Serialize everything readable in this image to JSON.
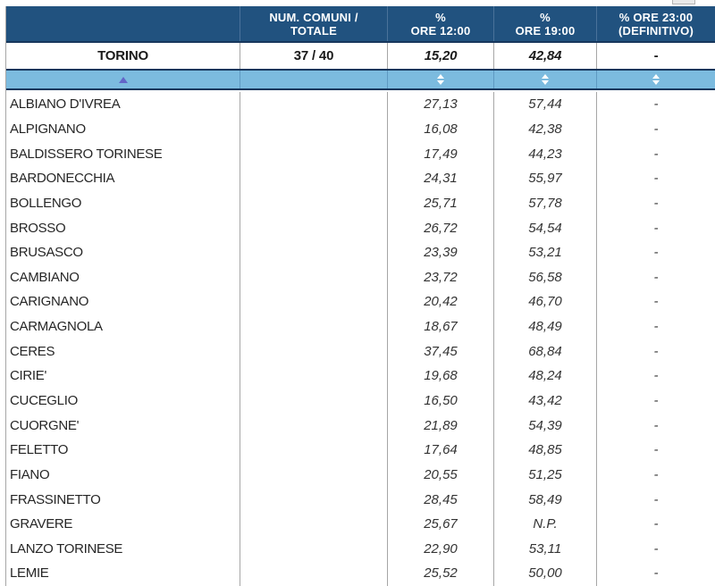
{
  "colors": {
    "header_bg": "#21527F",
    "thick_border": "#17375D",
    "sort_row_bg": "#7CBBDF",
    "sort_arrow_inactive": "#FFFFFF",
    "sort_arrow_active": "#6365C8",
    "grid_line": "#A6A6A6",
    "header_text": "#FFFFFF",
    "body_text": "#262626"
  },
  "table": {
    "columns": [
      {
        "id": "comune",
        "label_line1": "",
        "label_line2": ""
      },
      {
        "id": "num_comuni_totale",
        "label_line1": "NUM. COMUNI /",
        "label_line2": "TOTALE"
      },
      {
        "id": "ore_12",
        "label_line1": "%",
        "label_line2": "ORE 12:00"
      },
      {
        "id": "ore_19",
        "label_line1": "%",
        "label_line2": "ORE 19:00"
      },
      {
        "id": "ore_23",
        "label_line1": "% ORE 23:00",
        "label_line2": "(DEFINITIVO)"
      }
    ],
    "summary": {
      "name": "TORINO",
      "comuni": "37 / 40",
      "ore12": "15,20",
      "ore19": "42,84",
      "ore23": "-"
    },
    "sort": {
      "active_column": "comune",
      "direction": "ascending",
      "sortable_columns": [
        "ore_12",
        "ore_19",
        "ore_23"
      ]
    },
    "rows": [
      {
        "name": "ALBIANO D'IVREA",
        "comuni": "",
        "ore12": "27,13",
        "ore19": "57,44",
        "ore23": "-"
      },
      {
        "name": "ALPIGNANO",
        "comuni": "",
        "ore12": "16,08",
        "ore19": "42,38",
        "ore23": "-"
      },
      {
        "name": "BALDISSERO TORINESE",
        "comuni": "",
        "ore12": "17,49",
        "ore19": "44,23",
        "ore23": "-"
      },
      {
        "name": "BARDONECCHIA",
        "comuni": "",
        "ore12": "24,31",
        "ore19": "55,97",
        "ore23": "-"
      },
      {
        "name": "BOLLENGO",
        "comuni": "",
        "ore12": "25,71",
        "ore19": "57,78",
        "ore23": "-"
      },
      {
        "name": "BROSSO",
        "comuni": "",
        "ore12": "26,72",
        "ore19": "54,54",
        "ore23": "-"
      },
      {
        "name": "BRUSASCO",
        "comuni": "",
        "ore12": "23,39",
        "ore19": "53,21",
        "ore23": "-"
      },
      {
        "name": "CAMBIANO",
        "comuni": "",
        "ore12": "23,72",
        "ore19": "56,58",
        "ore23": "-"
      },
      {
        "name": "CARIGNANO",
        "comuni": "",
        "ore12": "20,42",
        "ore19": "46,70",
        "ore23": "-"
      },
      {
        "name": "CARMAGNOLA",
        "comuni": "",
        "ore12": "18,67",
        "ore19": "48,49",
        "ore23": "-"
      },
      {
        "name": "CERES",
        "comuni": "",
        "ore12": "37,45",
        "ore19": "68,84",
        "ore23": "-"
      },
      {
        "name": "CIRIE'",
        "comuni": "",
        "ore12": "19,68",
        "ore19": "48,24",
        "ore23": "-"
      },
      {
        "name": "CUCEGLIO",
        "comuni": "",
        "ore12": "16,50",
        "ore19": "43,42",
        "ore23": "-"
      },
      {
        "name": "CUORGNE'",
        "comuni": "",
        "ore12": "21,89",
        "ore19": "54,39",
        "ore23": "-"
      },
      {
        "name": "FELETTO",
        "comuni": "",
        "ore12": "17,64",
        "ore19": "48,85",
        "ore23": "-"
      },
      {
        "name": "FIANO",
        "comuni": "",
        "ore12": "20,55",
        "ore19": "51,25",
        "ore23": "-"
      },
      {
        "name": "FRASSINETTO",
        "comuni": "",
        "ore12": "28,45",
        "ore19": "58,49",
        "ore23": "-"
      },
      {
        "name": "GRAVERE",
        "comuni": "",
        "ore12": "25,67",
        "ore19": "N.P.",
        "ore23": "-"
      },
      {
        "name": "LANZO TORINESE",
        "comuni": "",
        "ore12": "22,90",
        "ore19": "53,11",
        "ore23": "-"
      },
      {
        "name": "LEMIE",
        "comuni": "",
        "ore12": "25,52",
        "ore19": "50,00",
        "ore23": "-"
      }
    ]
  }
}
